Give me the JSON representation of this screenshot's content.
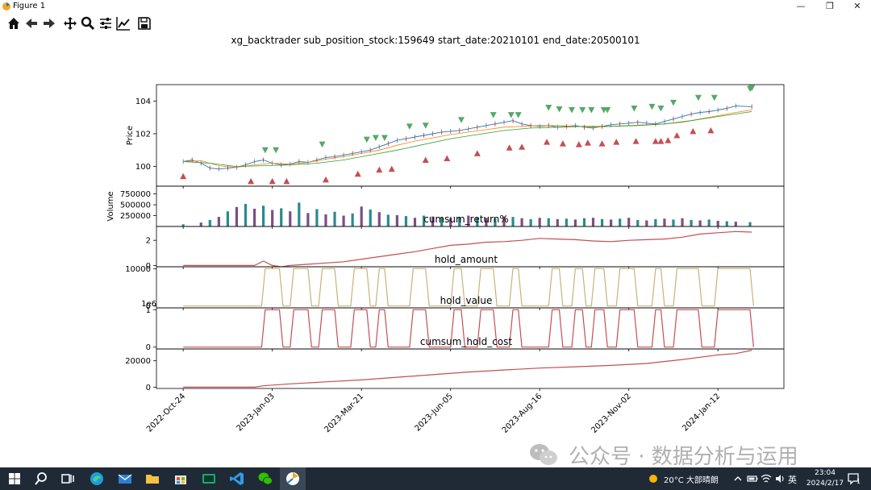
{
  "window": {
    "title": "Figure 1"
  },
  "toolbar": {
    "tools": [
      {
        "name": "home-icon"
      },
      {
        "name": "back-arrow-icon"
      },
      {
        "name": "forward-arrow-icon"
      },
      {
        "name": "pan-icon"
      },
      {
        "name": "zoom-icon"
      },
      {
        "name": "subplots-config-icon"
      },
      {
        "name": "edit-axes-icon"
      },
      {
        "name": "save-icon"
      }
    ]
  },
  "figure_title": "xg_backtrader sub_position_stock:159649 start_date:20210101 end_date:20500101",
  "chart_data": [
    {
      "type": "line",
      "panel": "price",
      "ylabel": "Price",
      "yticks": [
        100,
        102,
        104
      ],
      "ylim": [
        98.8,
        105
      ],
      "x_tick_labels": [
        "2022-Oct-24",
        "2023-Jan-03",
        "2023-Mar-21",
        "2023-Jun-05",
        "2023-Aug-16",
        "2023-Nov-02",
        "2024-Jan-12"
      ],
      "x_tick_positions": [
        0,
        50,
        100,
        150,
        200,
        250,
        300
      ],
      "xlim": [
        -15,
        337
      ],
      "series": [
        {
          "values_x": [
            0,
            5,
            10,
            15,
            20,
            25,
            30,
            35,
            40,
            45,
            50,
            55,
            60,
            65,
            70,
            75,
            80,
            85,
            90,
            95,
            100,
            105,
            110,
            115,
            120,
            125,
            130,
            135,
            140,
            145,
            150,
            155,
            160,
            165,
            170,
            175,
            180,
            185,
            190,
            195,
            200,
            205,
            210,
            215,
            220,
            225,
            230,
            235,
            240,
            245,
            250,
            255,
            260,
            265,
            270,
            275,
            280,
            285,
            290,
            295,
            300,
            305,
            310,
            319
          ],
          "values": [
            100.3,
            100.4,
            100.2,
            99.9,
            99.85,
            99.9,
            99.95,
            100.1,
            100.3,
            100.4,
            100.2,
            100.1,
            100.15,
            100.3,
            100.25,
            100.4,
            100.55,
            100.6,
            100.7,
            100.8,
            100.9,
            101.0,
            101.2,
            101.4,
            101.6,
            101.7,
            101.8,
            101.9,
            102.0,
            102.1,
            102.15,
            102.2,
            102.3,
            102.4,
            102.5,
            102.6,
            102.7,
            102.8,
            102.6,
            102.5,
            102.45,
            102.5,
            102.4,
            102.45,
            102.5,
            102.4,
            102.35,
            102.45,
            102.55,
            102.6,
            102.65,
            102.7,
            102.65,
            102.6,
            102.75,
            102.9,
            103.05,
            103.2,
            103.3,
            103.35,
            103.45,
            103.55,
            103.7,
            103.65
          ]
        },
        {
          "values_x": [
            0,
            10,
            20,
            30,
            40,
            50,
            60,
            70,
            80,
            90,
            100,
            110,
            120,
            130,
            140,
            150,
            160,
            170,
            180,
            190,
            200,
            210,
            220,
            230,
            240,
            250,
            260,
            270,
            280,
            290,
            300,
            310,
            319
          ],
          "values": [
            100.3,
            100.35,
            100.05,
            99.95,
            100.1,
            100.2,
            100.15,
            100.25,
            100.45,
            100.6,
            100.8,
            101.0,
            101.3,
            101.55,
            101.75,
            101.95,
            102.1,
            102.25,
            102.4,
            102.45,
            102.5,
            102.5,
            102.45,
            102.4,
            102.45,
            102.5,
            102.55,
            102.6,
            102.7,
            102.9,
            103.1,
            103.3,
            103.45
          ]
        },
        {
          "values_x": [
            0,
            15,
            30,
            45,
            60,
            75,
            90,
            105,
            120,
            135,
            150,
            165,
            180,
            195,
            210,
            225,
            240,
            255,
            270,
            285,
            300,
            319
          ],
          "values": [
            100.3,
            100.2,
            100.0,
            100.05,
            100.1,
            100.2,
            100.4,
            100.7,
            101.0,
            101.35,
            101.7,
            101.95,
            102.2,
            102.35,
            102.4,
            102.45,
            102.45,
            102.5,
            102.6,
            102.8,
            103.05,
            103.35
          ]
        }
      ],
      "buy_markers": {
        "x": [
          0,
          38,
          50,
          58,
          80,
          98,
          110,
          117,
          136,
          148,
          165,
          183,
          190,
          204,
          213,
          222,
          227,
          235,
          243,
          254,
          265,
          268,
          272,
          277,
          286,
          296
        ],
        "y": [
          99.4,
          99.1,
          99.1,
          99.1,
          99.2,
          99.55,
          99.8,
          99.85,
          100.4,
          100.5,
          100.8,
          101.15,
          101.2,
          101.5,
          101.4,
          101.35,
          101.45,
          101.4,
          101.5,
          101.55,
          101.55,
          101.55,
          101.6,
          101.9,
          102.15,
          102.2
        ]
      },
      "sell_markers": {
        "x": [
          46,
          52,
          78,
          103,
          108,
          113,
          127,
          136,
          156,
          174,
          184,
          188,
          205,
          211,
          218,
          224,
          229,
          236,
          238,
          253,
          263,
          268,
          275,
          289,
          298,
          318,
          319
        ],
        "y": [
          101.0,
          101.0,
          101.35,
          101.65,
          101.75,
          101.75,
          102.45,
          102.5,
          102.85,
          103.15,
          103.15,
          103.15,
          103.6,
          103.5,
          103.45,
          103.45,
          103.45,
          103.45,
          103.45,
          103.55,
          103.65,
          103.55,
          103.9,
          104.2,
          104.2,
          104.75,
          104.8
        ]
      }
    },
    {
      "type": "bar",
      "panel": "volume",
      "ylabel": "Volume",
      "yticks": [
        250000,
        500000,
        750000
      ],
      "ylim": [
        0,
        930000
      ],
      "x": [
        0,
        10,
        15,
        20,
        25,
        30,
        35,
        40,
        45,
        50,
        55,
        60,
        65,
        70,
        75,
        80,
        85,
        90,
        95,
        100,
        105,
        110,
        115,
        120,
        125,
        130,
        135,
        140,
        145,
        150,
        155,
        160,
        165,
        170,
        175,
        180,
        185,
        190,
        195,
        200,
        205,
        210,
        215,
        220,
        225,
        230,
        235,
        240,
        245,
        250,
        255,
        260,
        265,
        270,
        275,
        280,
        285,
        290,
        295,
        300,
        305,
        310,
        318
      ],
      "values": [
        50000,
        90000,
        150000,
        220000,
        350000,
        450000,
        520000,
        410000,
        480000,
        380000,
        420000,
        350000,
        550000,
        310000,
        400000,
        280000,
        340000,
        250000,
        300000,
        460000,
        390000,
        330000,
        270000,
        260000,
        240000,
        200000,
        250000,
        230000,
        210000,
        190000,
        220000,
        250000,
        210000,
        200000,
        180000,
        230000,
        220000,
        190000,
        170000,
        200000,
        190000,
        170000,
        180000,
        160000,
        190000,
        200000,
        170000,
        160000,
        180000,
        200000,
        150000,
        140000,
        170000,
        180000,
        160000,
        190000,
        150000,
        140000,
        160000,
        130000,
        120000,
        110000,
        100000
      ],
      "colors": [
        "#2a8a8f",
        "#7a4f84"
      ]
    },
    {
      "type": "line",
      "panel": "cumsum_return",
      "title": "cumsum_return%",
      "yticks": [
        0,
        2
      ],
      "ylim": [
        -0.1,
        3.1
      ],
      "x": [
        0,
        20,
        40,
        45,
        50,
        55,
        60,
        70,
        80,
        90,
        100,
        110,
        120,
        130,
        140,
        150,
        160,
        170,
        180,
        190,
        200,
        210,
        220,
        230,
        240,
        250,
        260,
        270,
        280,
        290,
        300,
        310,
        319
      ],
      "values": [
        0,
        0,
        0,
        0.35,
        0,
        -0.1,
        0,
        0.1,
        0.2,
        0.3,
        0.5,
        0.7,
        0.9,
        1.1,
        1.35,
        1.6,
        1.7,
        1.85,
        1.9,
        2.0,
        2.15,
        2.1,
        2.05,
        1.95,
        1.9,
        2.0,
        2.05,
        2.1,
        2.25,
        2.5,
        2.6,
        2.7,
        2.65
      ],
      "color": "#c44e52"
    },
    {
      "type": "line",
      "panel": "hold_amount",
      "title": "hold_amount",
      "yticks": [
        0,
        10000
      ],
      "ylim": [
        -500,
        10500
      ],
      "x": [
        0,
        44,
        46,
        54,
        56,
        60,
        62,
        70,
        72,
        76,
        78,
        85,
        87,
        94,
        96,
        103,
        105,
        108,
        110,
        113,
        115,
        127,
        129,
        136,
        138,
        150,
        152,
        156,
        158,
        165,
        167,
        174,
        176,
        183,
        185,
        188,
        190,
        205,
        207,
        211,
        213,
        218,
        220,
        224,
        226,
        229,
        231,
        236,
        238,
        243,
        245,
        253,
        255,
        263,
        265,
        268,
        270,
        275,
        277,
        289,
        291,
        298,
        300,
        318,
        320
      ],
      "values": [
        0,
        0,
        10000,
        10000,
        0,
        0,
        10000,
        10000,
        0,
        0,
        10000,
        10000,
        0,
        0,
        10000,
        10000,
        0,
        0,
        10000,
        10000,
        0,
        0,
        10000,
        10000,
        0,
        0,
        10000,
        10000,
        0,
        0,
        10000,
        10000,
        0,
        0,
        10000,
        10000,
        0,
        0,
        10000,
        10000,
        0,
        0,
        10000,
        10000,
        0,
        0,
        10000,
        10000,
        0,
        0,
        10000,
        10000,
        0,
        0,
        10000,
        10000,
        0,
        0,
        10000,
        10000,
        0,
        0,
        10000,
        10000,
        0
      ],
      "color": "#c8b27a"
    },
    {
      "type": "line",
      "panel": "hold_value",
      "title": "hold_value",
      "offset_label": "1e6",
      "yticks": [
        0,
        1
      ],
      "ylim": [
        -0.05,
        1.05
      ],
      "x": [
        0,
        44,
        46,
        54,
        56,
        60,
        62,
        70,
        72,
        76,
        78,
        85,
        87,
        94,
        96,
        103,
        105,
        108,
        110,
        113,
        115,
        127,
        129,
        136,
        138,
        150,
        152,
        156,
        158,
        165,
        167,
        174,
        176,
        183,
        185,
        188,
        190,
        205,
        207,
        211,
        213,
        218,
        220,
        224,
        226,
        229,
        231,
        236,
        238,
        243,
        245,
        253,
        255,
        263,
        265,
        268,
        270,
        275,
        277,
        289,
        291,
        298,
        300,
        318,
        320
      ],
      "values": [
        0,
        0,
        1,
        1,
        0,
        0,
        1,
        1,
        0,
        0,
        1,
        1,
        0,
        0,
        1,
        1,
        0,
        0,
        1,
        1,
        0,
        0,
        1,
        1,
        0,
        0,
        1,
        1,
        0,
        0,
        1,
        1,
        0,
        0,
        1,
        1,
        0,
        0,
        1,
        1,
        0,
        0,
        1,
        1,
        0,
        0,
        1,
        1,
        0,
        0,
        1,
        1,
        0,
        0,
        1,
        1,
        0,
        0,
        1,
        1,
        0,
        0,
        1,
        1,
        0
      ],
      "color": "#c44e52"
    },
    {
      "type": "line",
      "panel": "cumsum_hold_cost",
      "title": "cumsum_hold_cost",
      "yticks": [
        0,
        20000
      ],
      "ylim": [
        -1000,
        29000
      ],
      "x": [
        0,
        40,
        45,
        60,
        80,
        100,
        120,
        140,
        160,
        180,
        200,
        220,
        240,
        260,
        280,
        300,
        310,
        319
      ],
      "values": [
        0,
        0,
        1000,
        2500,
        4000,
        5500,
        7500,
        9500,
        11500,
        13000,
        14500,
        15500,
        16500,
        18000,
        21000,
        24500,
        25500,
        28000
      ],
      "color": "#c44e52"
    }
  ],
  "taskbar": {
    "weather": "20°C 大部晴朗",
    "ime": "英",
    "time": "23:04",
    "date": "2024/2/17"
  },
  "watermark": "公众号 · 数据分析与运用"
}
